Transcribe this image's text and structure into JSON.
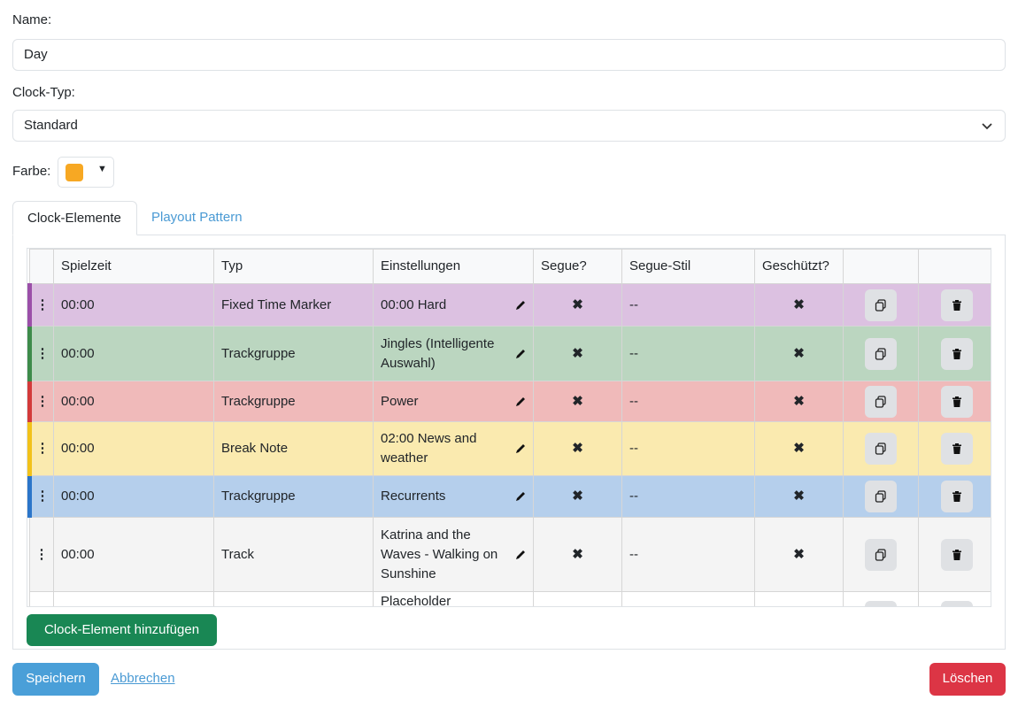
{
  "form": {
    "name_label": "Name:",
    "name_value": "Day",
    "type_label": "Clock-Typ:",
    "type_value": "Standard",
    "color_label": "Farbe:",
    "color": "#f7a823"
  },
  "tabs": [
    "Clock-Elemente",
    "Playout Pattern"
  ],
  "table": {
    "headers": [
      "Spielzeit",
      "Typ",
      "Einstellungen",
      "Segue?",
      "Segue-Stil",
      "Geschützt?"
    ],
    "rows": [
      {
        "time": "00:00",
        "type": "Fixed Time Marker",
        "settings": "00:00 Hard",
        "segue_style": "--",
        "color": "#9b4fa8"
      },
      {
        "time": "00:00",
        "type": "Trackgruppe",
        "settings": "Jingles (Intelligente Auswahl)",
        "segue_style": "--",
        "color": "#3d8b4a"
      },
      {
        "time": "00:00",
        "type": "Trackgruppe",
        "settings": "Power",
        "segue_style": "--",
        "color": "#d33a3a"
      },
      {
        "time": "00:00",
        "type": "Break Note",
        "settings": "02:00 News and weather",
        "segue_style": "--",
        "color": "#f2c21a"
      },
      {
        "time": "00:00",
        "type": "Trackgruppe",
        "settings": "Recurrents",
        "segue_style": "--",
        "color": "#2b75c9"
      },
      {
        "time": "00:00",
        "type": "Track",
        "settings": "Katrina and the Waves - Walking on Sunshine",
        "segue_style": "--"
      },
      {
        "settings": "Placeholder duration:"
      }
    ]
  },
  "buttons": {
    "add": "Clock-Element hinzufügen",
    "save": "Speichern",
    "cancel": "Abbrechen",
    "delete": "Löschen"
  }
}
